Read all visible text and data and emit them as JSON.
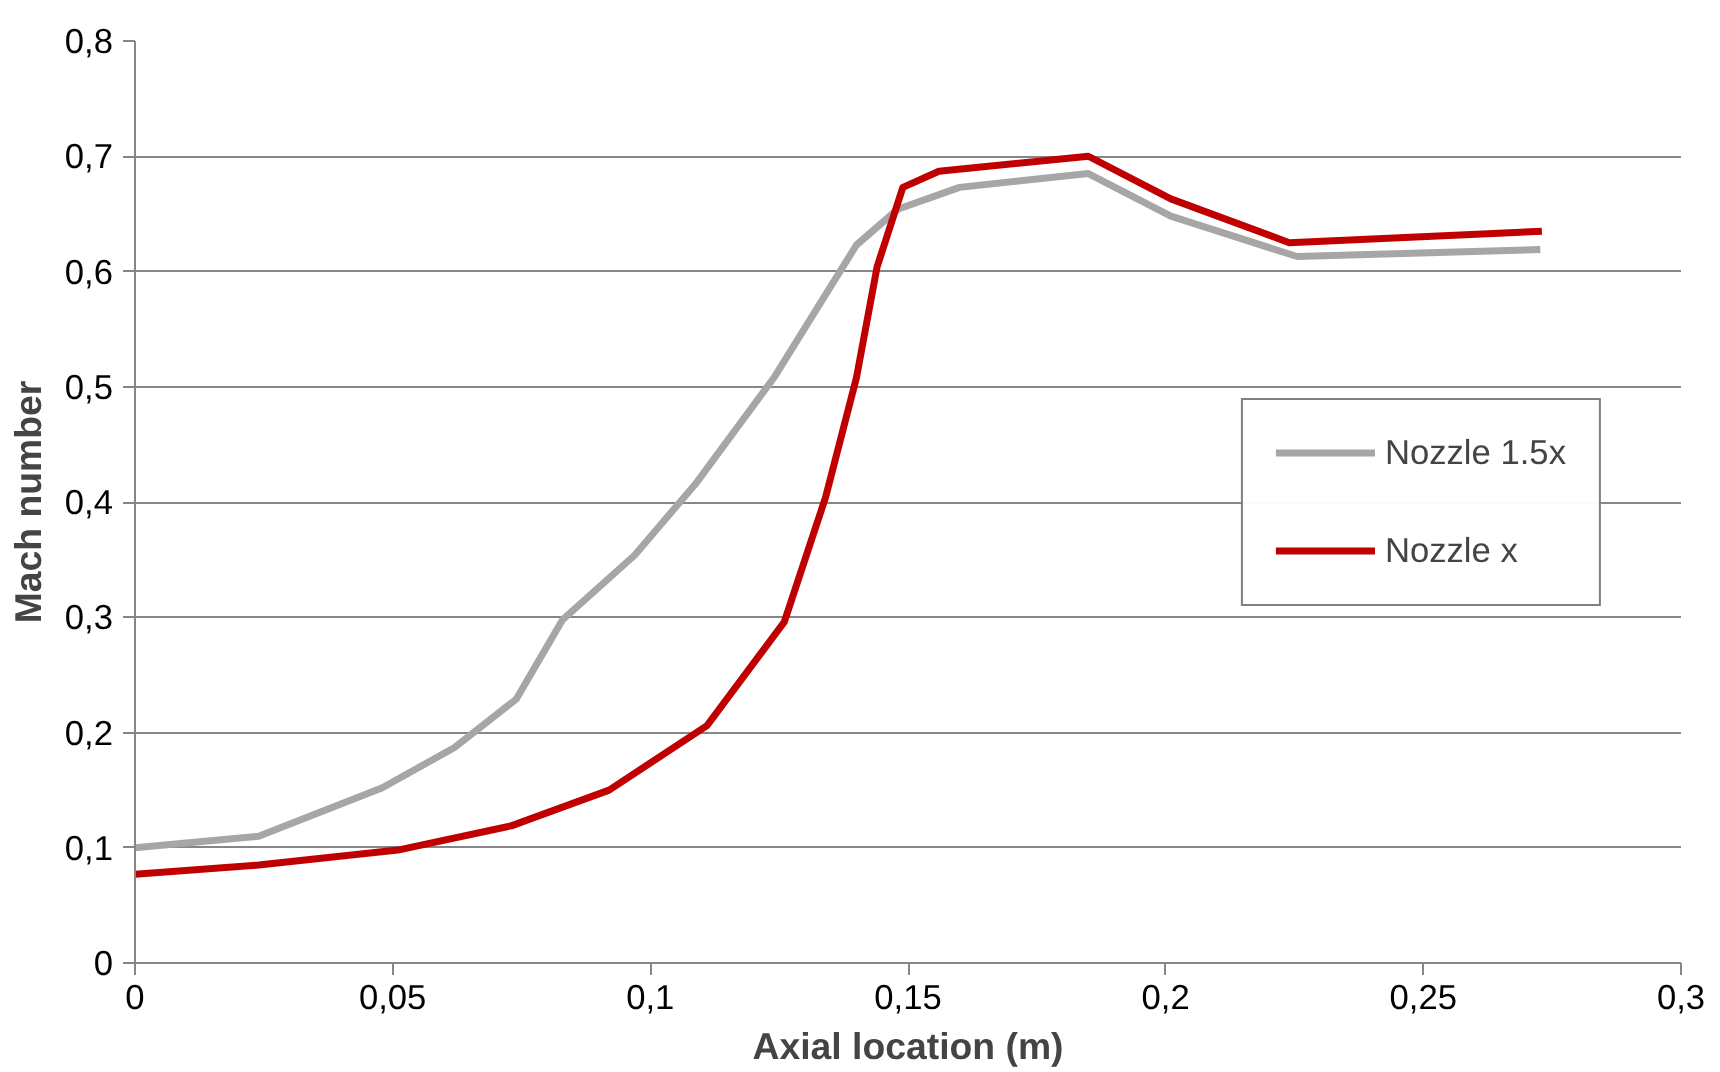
{
  "chart_data": {
    "type": "line",
    "xlabel": "Axial location (m)",
    "ylabel": "Mach number",
    "xlim": [
      0,
      0.3
    ],
    "ylim": [
      0,
      0.8
    ],
    "xticks": [
      0,
      {
        "value": 0.05,
        "label": "0,05"
      },
      {
        "value": 0.1,
        "label": "0,1"
      },
      {
        "value": 0.15,
        "label": "0,15"
      },
      {
        "value": 0.2,
        "label": "0,2"
      },
      {
        "value": 0.25,
        "label": "0,25"
      },
      {
        "value": 0.3,
        "label": "0,3"
      }
    ],
    "yticks": [
      0,
      {
        "value": 0.1,
        "label": "0,1"
      },
      {
        "value": 0.2,
        "label": "0,2"
      },
      {
        "value": 0.3,
        "label": "0,3"
      },
      {
        "value": 0.4,
        "label": "0,4"
      },
      {
        "value": 0.5,
        "label": "0,5"
      },
      {
        "value": 0.6,
        "label": "0,6"
      },
      {
        "value": 0.7,
        "label": "0,7"
      },
      {
        "value": 0.8,
        "label": "0,8"
      }
    ],
    "grid": "y",
    "legend": "right",
    "marker": "none",
    "line_style": "solid",
    "series": [
      {
        "name": "Nozzle 1.5x",
        "color": "#a6a6a6",
        "x": [
          0,
          0.024,
          0.048,
          0.062,
          0.074,
          0.083,
          0.097,
          0.109,
          0.124,
          0.14,
          0.148,
          0.16,
          0.185,
          0.201,
          0.2255,
          0.2727
        ],
        "values": [
          0.1,
          0.11,
          0.152,
          0.187,
          0.229,
          0.298,
          0.354,
          0.417,
          0.508,
          0.623,
          0.654,
          0.673,
          0.685,
          0.648,
          0.613,
          0.619
        ]
      },
      {
        "name": "Nozzle x",
        "color": "#c00000",
        "x": [
          0,
          0.024,
          0.051,
          0.073,
          0.092,
          0.111,
          0.126,
          0.134,
          0.14,
          0.144,
          0.149,
          0.156,
          0.185,
          0.201,
          0.224,
          0.273
        ],
        "values": [
          0.077,
          0.085,
          0.098,
          0.119,
          0.15,
          0.206,
          0.296,
          0.404,
          0.508,
          0.604,
          0.673,
          0.687,
          0.7,
          0.663,
          0.625,
          0.635
        ]
      }
    ]
  }
}
